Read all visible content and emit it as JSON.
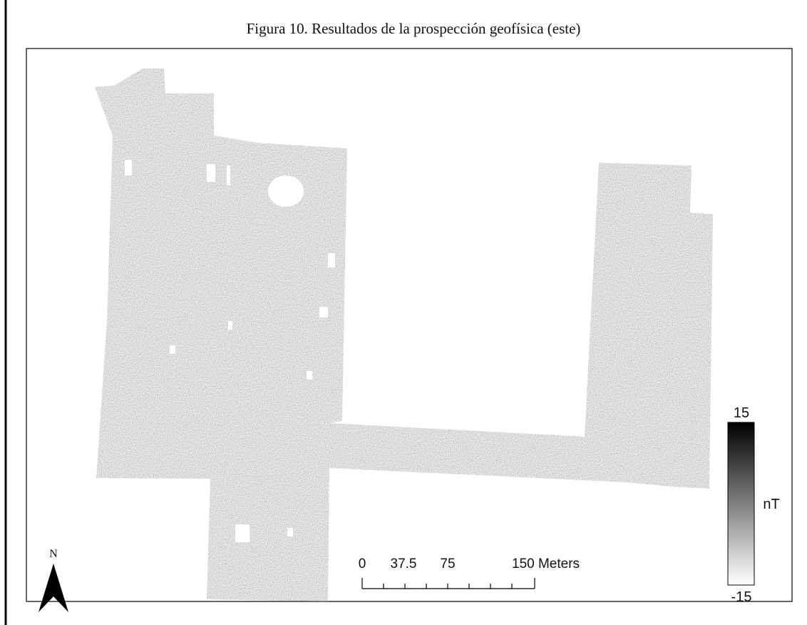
{
  "figure": {
    "title": "Figura 10. Resultados de la prospección geofísica (este)"
  },
  "legend": {
    "max": "15",
    "min": "-15",
    "unit": "nT"
  },
  "scale_bar": {
    "labels": [
      "0",
      "37.5",
      "75",
      "150 Meters"
    ]
  },
  "north_arrow": {
    "label": "N"
  }
}
